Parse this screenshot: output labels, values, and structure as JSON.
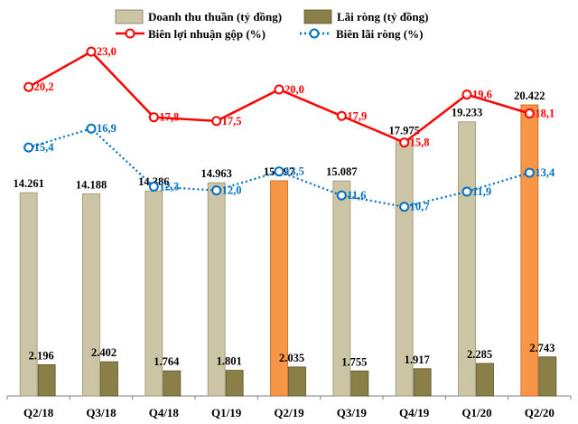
{
  "chart_data": {
    "type": "bar",
    "categories": [
      "Q2/18",
      "Q3/18",
      "Q4/18",
      "Q1/19",
      "Q2/19",
      "Q3/19",
      "Q4/19",
      "Q1/20",
      "Q2/20"
    ],
    "series": [
      {
        "name": "Doanh thu thuần (tỷ đồng)",
        "kind": "bar",
        "values": [
          14261,
          14188,
          14386,
          14963,
          15097,
          15087,
          17975,
          19233,
          20422
        ],
        "labels": [
          "14.261",
          "14.188",
          "14.386",
          "14.963",
          "15.097",
          "15.087",
          "17.975",
          "19.233",
          "20.422"
        ],
        "color": "#ccc5a5",
        "highlight_color": "#f79646",
        "highlight_categories": [
          "Q2/19",
          "Q2/20"
        ]
      },
      {
        "name": "Lãi ròng (tỷ đồng)",
        "kind": "bar",
        "values": [
          2196,
          2402,
          1764,
          1801,
          2035,
          1755,
          1917,
          2285,
          2743
        ],
        "labels": [
          "2.196",
          "2.402",
          "1.764",
          "1.801",
          "2.035",
          "1.755",
          "1.917",
          "2.285",
          "2.743"
        ],
        "color": "#8a8047"
      },
      {
        "name": "Biên lợi nhuận gộp (%)",
        "kind": "line",
        "style": "solid",
        "values": [
          20.2,
          23.0,
          17.8,
          17.5,
          20.0,
          17.9,
          15.8,
          19.6,
          18.1
        ],
        "labels": [
          "20,2",
          "23,0",
          "17,8",
          "17,5",
          "20,0",
          "17,9",
          "15,8",
          "19,6",
          "18,1"
        ],
        "color": "#ff0000"
      },
      {
        "name": "Biên lãi ròng (%)",
        "kind": "line",
        "style": "dotted",
        "values": [
          15.4,
          16.9,
          12.3,
          12.0,
          13.5,
          11.6,
          10.7,
          11.9,
          13.4
        ],
        "labels": [
          "15,4",
          "16,9",
          "12,3",
          "12,0",
          "13,5",
          "11,6",
          "10,7",
          "11,9",
          "13,4"
        ],
        "color": "#0070c0"
      }
    ],
    "legend_position": "top",
    "grid": false,
    "title": "",
    "xlabel": "",
    "ylabel": ""
  }
}
